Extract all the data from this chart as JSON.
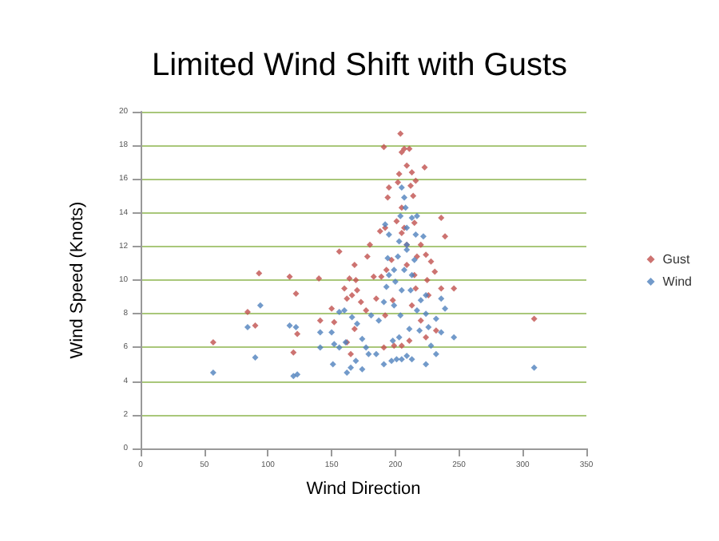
{
  "chart_data": {
    "type": "scatter",
    "title": "Limited Wind Shift with Gusts",
    "xlabel": "Wind Direction",
    "ylabel": "Wind Speed (Knots)",
    "xlim": [
      0,
      350
    ],
    "xticks": [
      0,
      50,
      100,
      150,
      200,
      250,
      300,
      350
    ],
    "ylim": [
      0,
      20
    ],
    "yticks": [
      0,
      2,
      4,
      6,
      8,
      10,
      12,
      14,
      16,
      18,
      20
    ],
    "grid": "y",
    "legend": "right",
    "marker": "diamond",
    "series": [
      {
        "name": "Gust",
        "color": "#c0504d",
        "x": [
          57,
          84,
          90,
          93,
          117,
          122,
          123,
          120,
          140,
          141,
          150,
          156,
          152,
          160,
          164,
          168,
          169,
          170,
          166,
          162,
          173,
          165,
          162,
          168,
          177,
          178,
          180,
          183,
          185,
          188,
          189,
          191,
          194,
          195,
          192,
          193,
          197,
          198,
          192,
          201,
          202,
          204,
          205,
          207,
          203,
          205,
          207,
          209,
          209,
          211,
          212,
          213,
          214,
          215,
          216,
          217,
          215,
          216,
          213,
          211,
          205,
          220,
          223,
          224,
          225,
          226,
          228,
          231,
          236,
          239,
          236,
          246,
          232,
          224,
          309,
          205,
          209,
          220,
          199,
          191
        ],
        "values": [
          6.3,
          8.1,
          7.3,
          10.4,
          10.2,
          9.2,
          6.8,
          5.7,
          10.1,
          7.6,
          8.3,
          11.7,
          7.5,
          9.5,
          10.1,
          10.9,
          10.0,
          9.4,
          9.1,
          8.9,
          8.7,
          5.6,
          6.3,
          7.1,
          8.2,
          11.4,
          12.1,
          10.2,
          8.9,
          12.9,
          10.2,
          17.9,
          14.9,
          15.5,
          13.1,
          10.6,
          11.2,
          8.8,
          7.9,
          13.5,
          15.8,
          18.7,
          17.6,
          17.8,
          16.3,
          14.3,
          13.1,
          16.8,
          12.1,
          17.8,
          15.6,
          16.4,
          15.0,
          13.4,
          15.9,
          11.4,
          10.3,
          9.5,
          8.5,
          6.4,
          6.1,
          12.1,
          16.7,
          11.5,
          10.0,
          9.1,
          11.1,
          10.5,
          13.7,
          12.6,
          9.5,
          9.5,
          7.0,
          6.6,
          7.7,
          12.8,
          10.9,
          7.6,
          6.1,
          6.0
        ]
      },
      {
        "name": "Wind",
        "color": "#4f81bd",
        "x": [
          57,
          84,
          90,
          94,
          117,
          122,
          120,
          123,
          141,
          141,
          150,
          151,
          152,
          156,
          156,
          160,
          161,
          162,
          165,
          166,
          169,
          170,
          174,
          174,
          177,
          179,
          185,
          181,
          187,
          191,
          191,
          193,
          195,
          194,
          192,
          195,
          198,
          199,
          200,
          202,
          203,
          204,
          205,
          207,
          208,
          209,
          209,
          207,
          205,
          204,
          203,
          201,
          205,
          209,
          213,
          211,
          212,
          213,
          215,
          216,
          217,
          217,
          219,
          220,
          222,
          224,
          224,
          226,
          228,
          224,
          232,
          232,
          236,
          236,
          239,
          246,
          309,
          197,
          209,
          213,
          199
        ],
        "values": [
          4.5,
          7.2,
          5.4,
          8.5,
          7.3,
          7.2,
          4.3,
          4.4,
          6.9,
          6.0,
          6.9,
          5.0,
          6.2,
          6.0,
          8.1,
          8.2,
          6.3,
          4.5,
          4.8,
          7.8,
          5.2,
          7.4,
          6.5,
          4.7,
          6.0,
          5.6,
          5.6,
          7.9,
          7.6,
          5.0,
          8.7,
          9.6,
          10.3,
          11.3,
          13.3,
          12.7,
          6.4,
          8.5,
          9.9,
          11.4,
          12.3,
          13.8,
          15.5,
          14.9,
          14.3,
          13.1,
          11.8,
          10.6,
          9.4,
          7.9,
          6.6,
          5.3,
          5.3,
          5.5,
          5.3,
          7.1,
          9.4,
          10.3,
          11.2,
          12.7,
          13.8,
          8.2,
          7.0,
          8.8,
          12.6,
          8.0,
          9.1,
          7.2,
          6.1,
          5.0,
          7.7,
          5.6,
          8.9,
          6.9,
          8.3,
          6.6,
          4.8,
          5.2,
          12.1,
          13.7,
          10.6
        ]
      }
    ]
  }
}
